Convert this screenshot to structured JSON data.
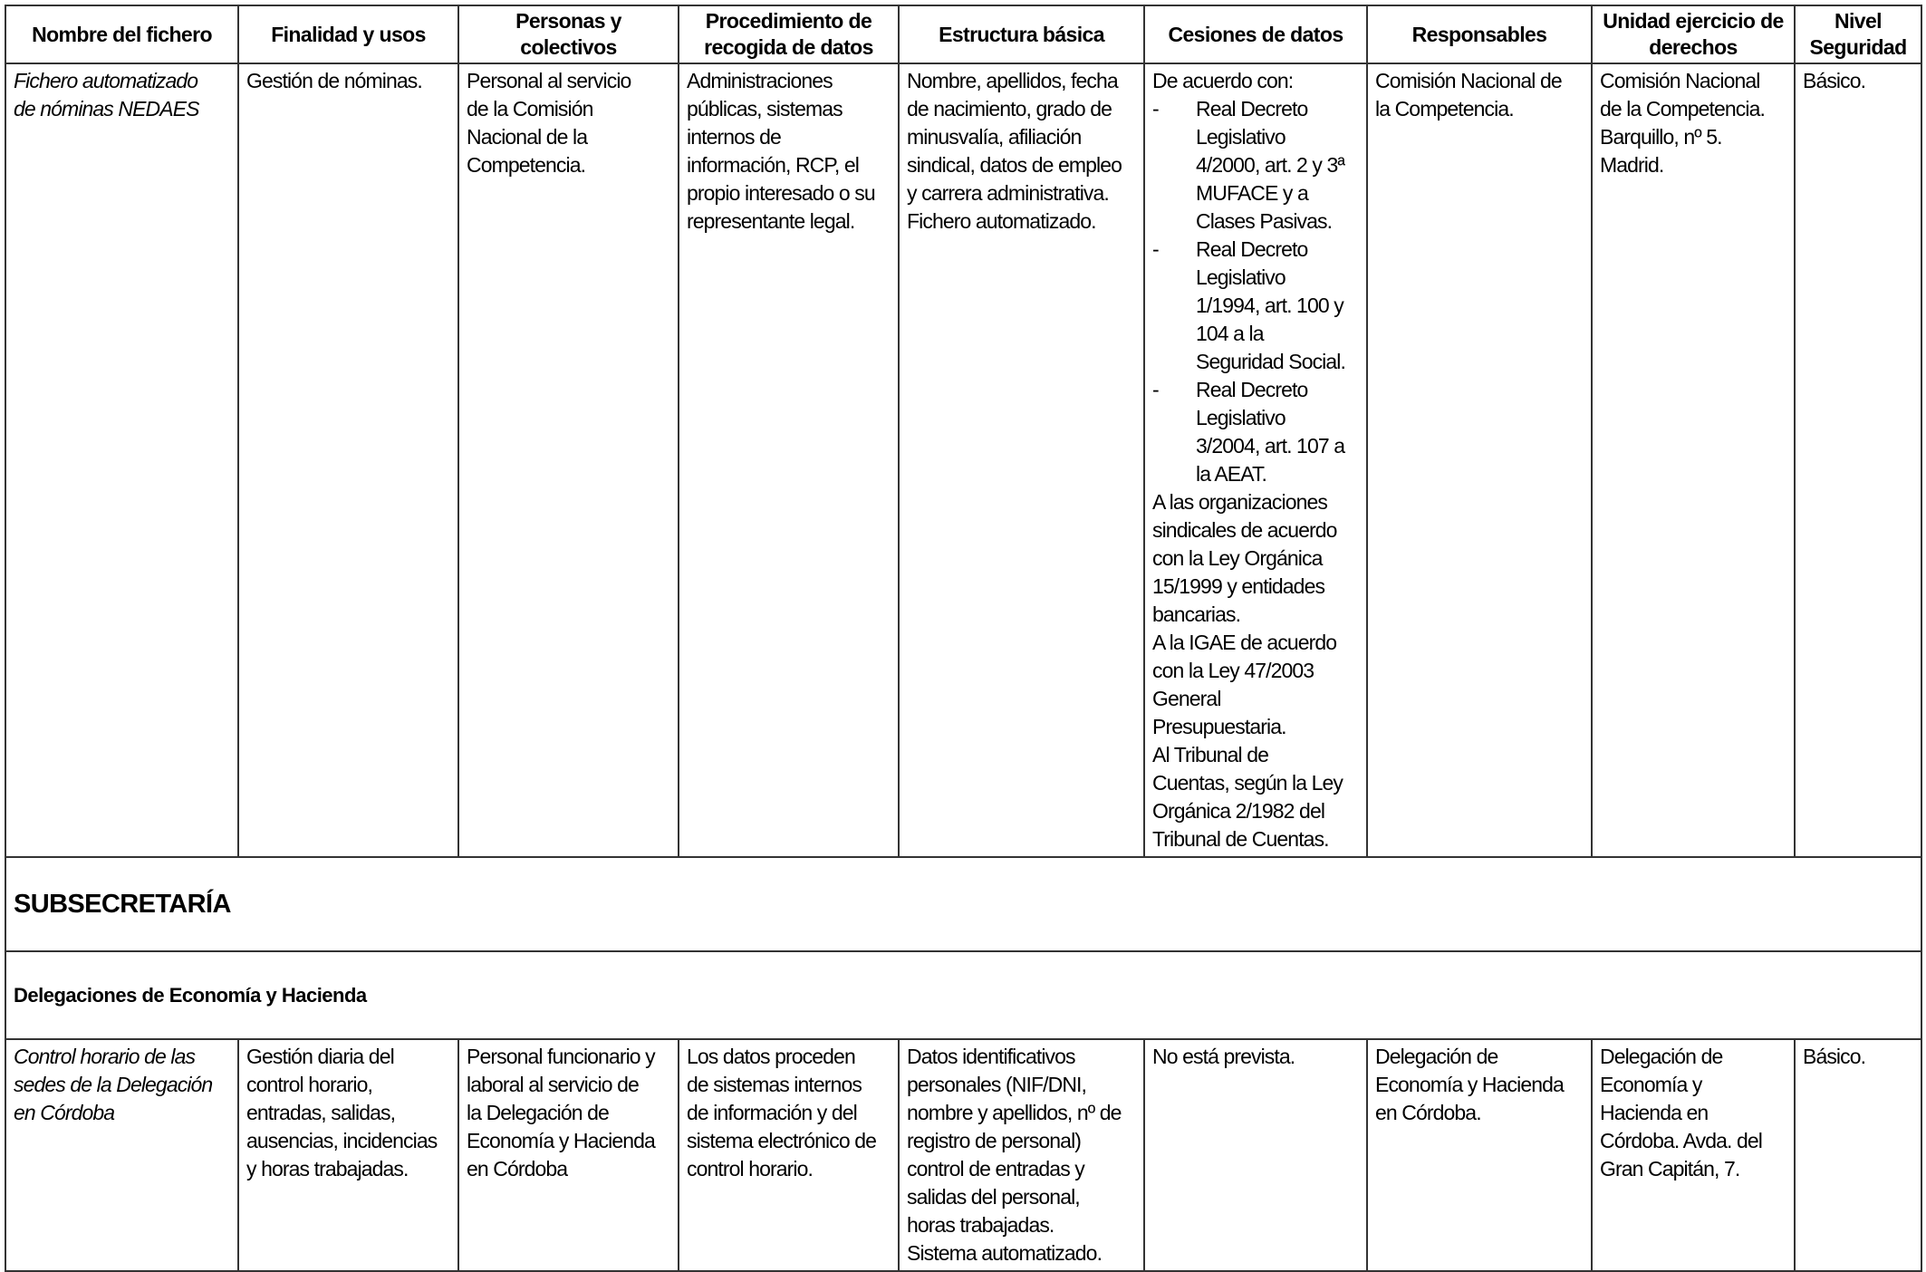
{
  "headers": [
    [
      "Nombre del fichero"
    ],
    [
      "Finalidad y usos"
    ],
    [
      "Personas y",
      "colectivos"
    ],
    [
      "Procedimiento de",
      "recogida de datos"
    ],
    [
      "Estructura básica"
    ],
    [
      "Cesiones de datos"
    ],
    [
      "Responsables"
    ],
    [
      "Unidad ejercicio de",
      "derechos"
    ],
    [
      "Nivel",
      "Seguridad"
    ]
  ],
  "row1": {
    "nombre": [
      "Fichero automatizado",
      "de nóminas NEDAES"
    ],
    "finalidad": [
      "Gestión de nóminas."
    ],
    "personas": [
      "Personal al servicio",
      "de la Comisión",
      "Nacional de la",
      "Competencia."
    ],
    "procedimiento": [
      "Administraciones",
      "públicas, sistemas",
      "internos de",
      "información, RCP, el",
      "propio interesado o su",
      "representante legal."
    ],
    "estructura": [
      "Nombre, apellidos, fecha",
      "de nacimiento, grado de",
      "minusvalía, afiliación",
      "sindical, datos de empleo",
      "y carrera administrativa.",
      "Fichero automatizado."
    ],
    "cesiones": {
      "intro": "De acuerdo con:",
      "items": [
        [
          "Real Decreto",
          "Legislativo",
          "4/2000, art. 2 y 3ª",
          "MUFACE y a",
          "Clases Pasivas."
        ],
        [
          "Real Decreto",
          "Legislativo",
          "1/1994, art. 100 y",
          "104 a la",
          "Seguridad Social."
        ],
        [
          "Real Decreto",
          "Legislativo",
          "3/2004, art. 107 a",
          "la AEAT."
        ]
      ],
      "after": [
        "A las organizaciones",
        "sindicales de acuerdo",
        "con la Ley Orgánica",
        "15/1999 y entidades",
        "bancarias.",
        "A la IGAE de acuerdo",
        "con la Ley 47/2003",
        "General",
        "Presupuestaria.",
        "Al Tribunal de",
        "Cuentas, según la Ley",
        "Orgánica 2/1982 del",
        "Tribunal de Cuentas."
      ]
    },
    "responsables": [
      "Comisión Nacional de",
      "la Competencia."
    ],
    "unidad": [
      "Comisión Nacional",
      "de la Competencia.",
      "Barquillo, nº 5.",
      "Madrid."
    ],
    "nivel": [
      "Básico."
    ]
  },
  "section_title": "SUBSECRETARÍA",
  "subsection_title": "Delegaciones de Economía y Hacienda",
  "row2": {
    "nombre": [
      "Control horario de las",
      "sedes de la Delegación",
      "en Córdoba"
    ],
    "finalidad": [
      "Gestión diaria del",
      "control horario,",
      "entradas, salidas,",
      "ausencias, incidencias",
      "y horas trabajadas."
    ],
    "personas": [
      "Personal funcionario y",
      "laboral al servicio de",
      "la Delegación de",
      "Economía y Hacienda",
      "en Córdoba"
    ],
    "procedimiento": [
      "Los datos proceden",
      "de sistemas internos",
      "de información y del",
      "sistema electrónico de",
      "control horario."
    ],
    "estructura": [
      "Datos identificativos",
      "personales (NIF/DNI,",
      "nombre y apellidos, nº de",
      "registro de personal)",
      "control de entradas y",
      "salidas del personal,",
      "horas trabajadas.",
      "Sistema automatizado."
    ],
    "cesiones": [
      "No está prevista."
    ],
    "responsables": [
      "Delegación de",
      "Economía y Hacienda",
      "en Córdoba."
    ],
    "unidad": [
      "Delegación de",
      "Economía y",
      "Hacienda en",
      "Córdoba. Avda. del",
      "Gran Capitán,  7."
    ],
    "nivel": [
      "Básico."
    ]
  }
}
